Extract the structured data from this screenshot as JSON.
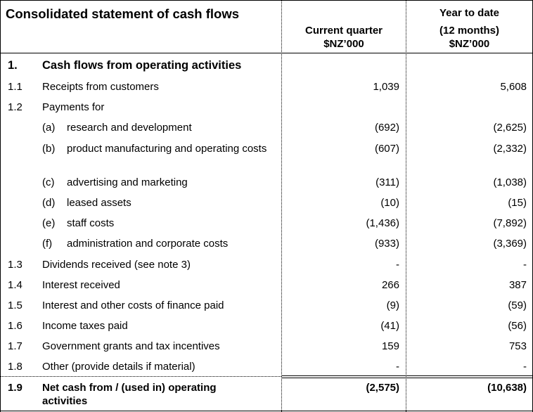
{
  "header": {
    "title": "Consolidated statement of cash flows",
    "current_quarter": [
      "Current quarter",
      "$NZ’000"
    ],
    "year_to_date": [
      "Year to date",
      "(12 months)",
      "$NZ’000"
    ]
  },
  "section": {
    "number": "1.",
    "label": "Cash flows from operating activities"
  },
  "rows": [
    {
      "num": "1.1",
      "label": "Receipts from customers",
      "current": "1,039",
      "ytd": "5,608"
    },
    {
      "num": "1.2",
      "label": "Payments for",
      "current": "",
      "ytd": ""
    },
    {
      "sub": "(a)",
      "label": "research and development",
      "current": "(692)",
      "ytd": "(2,625)"
    },
    {
      "sub": "(b)",
      "label": "product manufacturing and operating costs",
      "current": "(607)",
      "ytd": "(2,332)"
    },
    {
      "sub": "(c)",
      "label": "advertising and marketing",
      "current": "(311)",
      "ytd": "(1,038)"
    },
    {
      "sub": "(d)",
      "label": "leased assets",
      "current": "(10)",
      "ytd": "(15)"
    },
    {
      "sub": "(e)",
      "label": "staff costs",
      "current": "(1,436)",
      "ytd": "(7,892)"
    },
    {
      "sub": "(f)",
      "label": "administration and corporate costs",
      "current": "(933)",
      "ytd": "(3,369)"
    },
    {
      "num": "1.3",
      "label": "Dividends received (see note 3)",
      "current": "-",
      "ytd": "-"
    },
    {
      "num": "1.4",
      "label": "Interest received",
      "current": "266",
      "ytd": "387"
    },
    {
      "num": "1.5",
      "label": "Interest and other costs of finance paid",
      "current": "(9)",
      "ytd": "(59)"
    },
    {
      "num": "1.6",
      "label": "Income taxes paid",
      "current": "(41)",
      "ytd": "(56)"
    },
    {
      "num": "1.7",
      "label": "Government grants and tax incentives",
      "current": "159",
      "ytd": "753"
    },
    {
      "num": "1.8",
      "label": "Other (provide details if material)",
      "current": "-",
      "ytd": "-"
    }
  ],
  "total": {
    "num": "1.9",
    "label": "Net cash from / (used in) operating activities",
    "current": "(2,575)",
    "ytd": "(10,638)"
  }
}
